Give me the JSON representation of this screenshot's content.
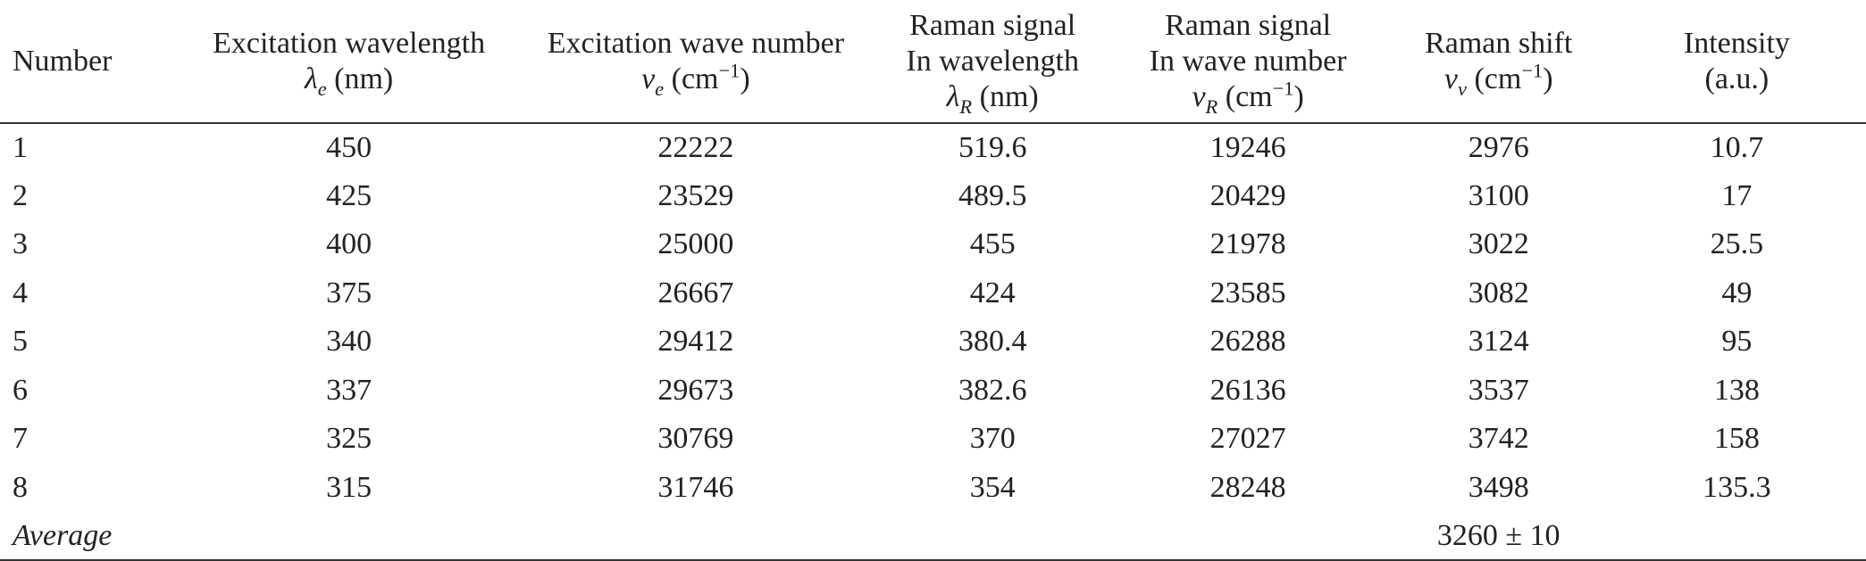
{
  "table": {
    "headers": {
      "number": "Number",
      "excitation_wavelength": {
        "line1": "Excitation wavelength",
        "symbol": "λ",
        "subscript": "e",
        "unit": "(nm)"
      },
      "excitation_wave_number": {
        "line1": "Excitation wave number",
        "symbol": "ν",
        "subscript": "e",
        "unit_base": "(cm",
        "unit_sup": "−1",
        "unit_close": ")"
      },
      "raman_signal_wavelength": {
        "line1": "Raman signal",
        "line2": "In wavelength",
        "symbol": "λ",
        "subscript": "R",
        "unit": "(nm)"
      },
      "raman_signal_wave_number": {
        "line1": "Raman signal",
        "line2": "In wave number",
        "symbol": "ν",
        "subscript": "R",
        "unit_base": "(cm",
        "unit_sup": "−1",
        "unit_close": ")"
      },
      "raman_shift": {
        "line1": "Raman shift",
        "symbol": "ν",
        "subscript": "ν",
        "unit_base": "(cm",
        "unit_sup": "−1",
        "unit_close": ")"
      },
      "intensity": {
        "line1": "Intensity",
        "line2": "(a.u.)"
      }
    },
    "rows": [
      {
        "number": "1",
        "exc_wl": "450",
        "exc_wn": "22222",
        "ram_wl": "519.6",
        "ram_wn": "19246",
        "shift": "2976",
        "intensity": "10.7"
      },
      {
        "number": "2",
        "exc_wl": "425",
        "exc_wn": "23529",
        "ram_wl": "489.5",
        "ram_wn": "20429",
        "shift": "3100",
        "intensity": "17"
      },
      {
        "number": "3",
        "exc_wl": "400",
        "exc_wn": "25000",
        "ram_wl": "455",
        "ram_wn": "21978",
        "shift": "3022",
        "intensity": "25.5"
      },
      {
        "number": "4",
        "exc_wl": "375",
        "exc_wn": "26667",
        "ram_wl": "424",
        "ram_wn": "23585",
        "shift": "3082",
        "intensity": "49"
      },
      {
        "number": "5",
        "exc_wl": "340",
        "exc_wn": "29412",
        "ram_wl": "380.4",
        "ram_wn": "26288",
        "shift": "3124",
        "intensity": "95"
      },
      {
        "number": "6",
        "exc_wl": "337",
        "exc_wn": "29673",
        "ram_wl": "382.6",
        "ram_wn": "26136",
        "shift": "3537",
        "intensity": "138"
      },
      {
        "number": "7",
        "exc_wl": "325",
        "exc_wn": "30769",
        "ram_wl": "370",
        "ram_wn": "27027",
        "shift": "3742",
        "intensity": "158"
      },
      {
        "number": "8",
        "exc_wl": "315",
        "exc_wn": "31746",
        "ram_wl": "354",
        "ram_wn": "28248",
        "shift": "3498",
        "intensity": "135.3"
      }
    ],
    "average": {
      "label": "Average",
      "shift": "3260 ± 10"
    }
  }
}
